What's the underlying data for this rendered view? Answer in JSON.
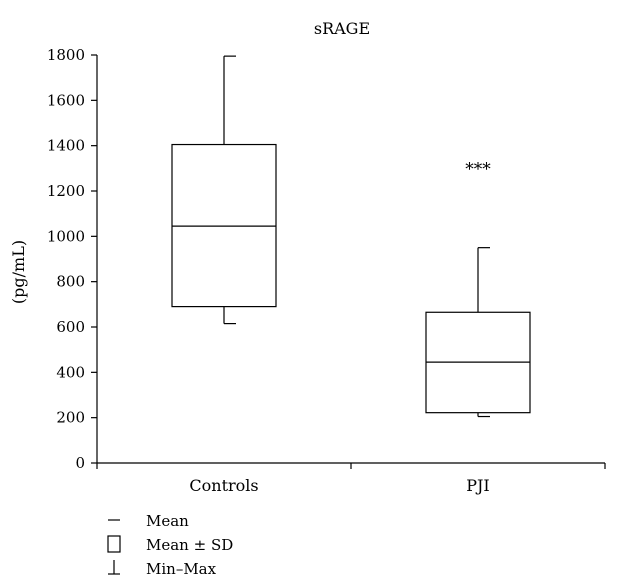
{
  "chart_data": {
    "type": "box",
    "title": "sRAGE",
    "ylabel": "(pg/mL)",
    "xlabel": "",
    "ylim": [
      0,
      1800
    ],
    "yticks": [
      0,
      200,
      400,
      600,
      800,
      1000,
      1200,
      1400,
      1600,
      1800
    ],
    "grid": false,
    "legend_position": "bottom-left",
    "categories": [
      "Controls",
      "PJI"
    ],
    "boxes": [
      {
        "category": "Controls",
        "min": 615,
        "mean_minus_sd": 690,
        "mean": 1045,
        "mean_plus_sd": 1405,
        "max": 1795,
        "annotation": ""
      },
      {
        "category": "PJI",
        "min": 205,
        "mean_minus_sd": 222,
        "mean": 445,
        "mean_plus_sd": 665,
        "max": 950,
        "annotation": "***"
      }
    ],
    "legend": [
      {
        "symbol": "mean",
        "label": "Mean"
      },
      {
        "symbol": "box",
        "label": "Mean ± SD"
      },
      {
        "symbol": "whisker",
        "label": "Min–Max"
      }
    ]
  }
}
